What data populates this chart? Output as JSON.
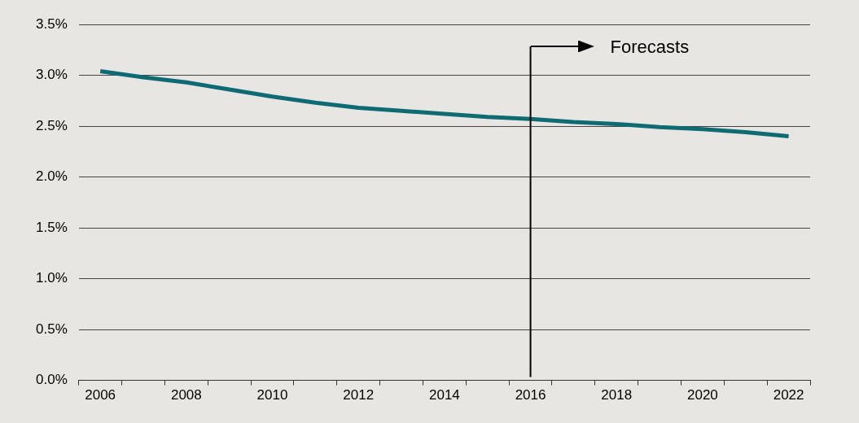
{
  "chart_data": {
    "type": "line",
    "categories": [
      "2006",
      null,
      "2008",
      null,
      "2010",
      null,
      "2012",
      null,
      "2014",
      null,
      "2016",
      null,
      "2018",
      null,
      "2020",
      null,
      "2022"
    ],
    "series": [
      {
        "color": "#0e6b73",
        "values": [
          3.04,
          2.98,
          2.93,
          2.86,
          2.79,
          2.73,
          2.68,
          2.65,
          2.62,
          2.59,
          2.57,
          2.54,
          2.52,
          2.49,
          2.47,
          2.44,
          2.4
        ]
      }
    ],
    "ylim": [
      0,
      3.5
    ],
    "yticks": [
      {
        "value": 0,
        "label": "0.0%"
      },
      {
        "value": 0.5,
        "label": "0.5%"
      },
      {
        "value": 1,
        "label": "1.0%"
      },
      {
        "value": 1.5,
        "label": "1.5%"
      },
      {
        "value": 2,
        "label": "2.0%"
      },
      {
        "value": 2.5,
        "label": "2.5%"
      },
      {
        "value": 3,
        "label": "3.0%"
      },
      {
        "value": 3.5,
        "label": "3.5%"
      }
    ],
    "grid": "y",
    "legend": false,
    "marker": "none",
    "line_style": "solid",
    "ref_lines": [
      {
        "axis": "x",
        "value": "2016",
        "label": "Forecasts",
        "color": "#000000"
      }
    ]
  }
}
